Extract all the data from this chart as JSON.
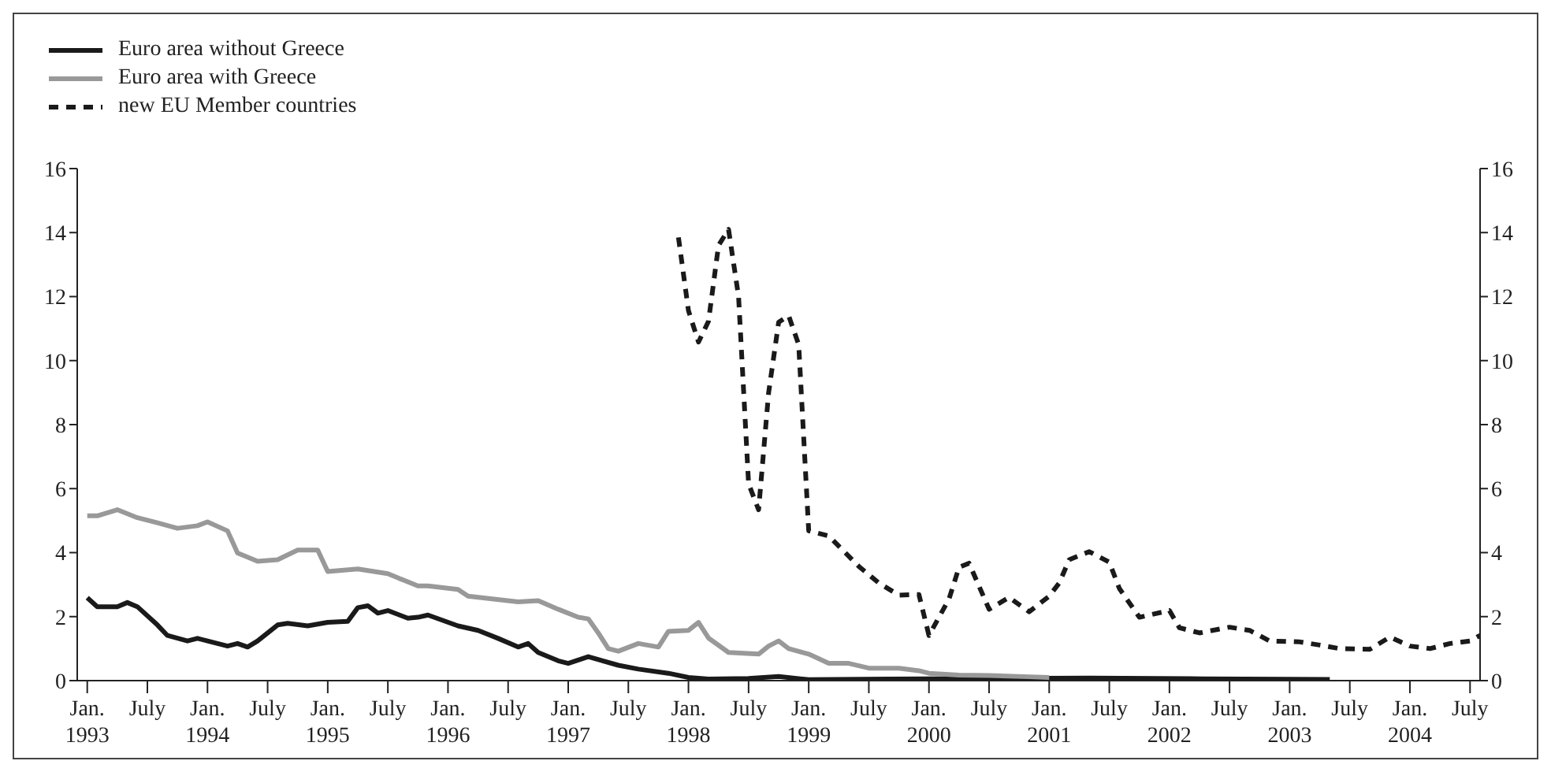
{
  "chart_data": {
    "type": "line",
    "xlim": [
      "1992-12",
      "2004-08"
    ],
    "xticks": [
      {
        "value": "1993-01",
        "label": "Jan. 1993"
      },
      {
        "value": "1993-07",
        "label": "July"
      },
      {
        "value": "1994-01",
        "label": "Jan. 1994"
      },
      {
        "value": "1994-07",
        "label": "July"
      },
      {
        "value": "1995-01",
        "label": "Jan. 1995"
      },
      {
        "value": "1995-07",
        "label": "July"
      },
      {
        "value": "1996-01",
        "label": "Jan. 1996"
      },
      {
        "value": "1996-07",
        "label": "July"
      },
      {
        "value": "1997-01",
        "label": "Jan. 1997"
      },
      {
        "value": "1997-07",
        "label": "July"
      },
      {
        "value": "1998-01",
        "label": "Jan. 1998"
      },
      {
        "value": "1998-07",
        "label": "July"
      },
      {
        "value": "1999-01",
        "label": "Jan. 1999"
      },
      {
        "value": "1999-07",
        "label": "July"
      },
      {
        "value": "2000-01",
        "label": "Jan. 2000"
      },
      {
        "value": "2000-07",
        "label": "July"
      },
      {
        "value": "2001-01",
        "label": "Jan. 2001"
      },
      {
        "value": "2001-07",
        "label": "July"
      },
      {
        "value": "2002-01",
        "label": "Jan. 2002"
      },
      {
        "value": "2002-07",
        "label": "July"
      },
      {
        "value": "2003-01",
        "label": "Jan. 2003"
      },
      {
        "value": "2003-07",
        "label": "July"
      },
      {
        "value": "2004-01",
        "label": "Jan. 2004"
      },
      {
        "value": "2004-07",
        "label": "July"
      }
    ],
    "ylim": [
      0,
      16
    ],
    "yticks": [
      0,
      2,
      4,
      6,
      8,
      10,
      12,
      14,
      16
    ],
    "y2lim": [
      0,
      16
    ],
    "y2ticks": [
      0,
      2,
      4,
      6,
      8,
      10,
      12,
      14,
      16
    ],
    "legend": "top left",
    "grid": false,
    "series": [
      {
        "name": "Euro area without Greece",
        "color": "#1a1a1a",
        "line_style": "solid",
        "x": [
          "1993-01",
          "1993-02",
          "1993-04",
          "1993-05",
          "1993-06",
          "1993-08",
          "1993-09",
          "1993-11",
          "1993-12",
          "1994-01",
          "1994-03",
          "1994-04",
          "1994-05",
          "1994-06",
          "1994-08",
          "1994-09",
          "1994-11",
          "1995-01",
          "1995-03",
          "1995-04",
          "1995-05",
          "1995-06",
          "1995-07",
          "1995-09",
          "1995-10",
          "1995-11",
          "1996-02",
          "1996-04",
          "1996-06",
          "1996-08",
          "1996-09",
          "1996-10",
          "1996-12",
          "1997-01",
          "1997-03",
          "1997-06",
          "1997-08",
          "1997-11",
          "1998-01",
          "1998-03",
          "1998-07",
          "1998-10",
          "1999-01",
          "1999-09",
          "2001-05",
          "2002-03",
          "2003-05"
        ],
        "values": [
          2.59,
          2.31,
          2.31,
          2.44,
          2.31,
          1.74,
          1.41,
          1.24,
          1.32,
          1.24,
          1.08,
          1.16,
          1.05,
          1.24,
          1.74,
          1.79,
          1.71,
          1.82,
          1.85,
          2.28,
          2.34,
          2.11,
          2.19,
          1.95,
          1.98,
          2.05,
          1.71,
          1.57,
          1.32,
          1.05,
          1.16,
          0.88,
          0.62,
          0.54,
          0.75,
          0.48,
          0.36,
          0.23,
          0.1,
          0.05,
          0.07,
          0.13,
          0.03,
          0.05,
          0.08,
          0.06,
          0.04
        ]
      },
      {
        "name": "Euro area with Greece",
        "color": "#999999",
        "line_style": "solid",
        "x": [
          "1993-01",
          "1993-02",
          "1993-04",
          "1993-06",
          "1993-08",
          "1993-10",
          "1993-12",
          "1994-01",
          "1994-03",
          "1994-04",
          "1994-06",
          "1994-08",
          "1994-10",
          "1994-12",
          "1995-01",
          "1995-04",
          "1995-07",
          "1995-08",
          "1995-10",
          "1995-11",
          "1996-02",
          "1996-03",
          "1996-08",
          "1996-10",
          "1996-12",
          "1997-02",
          "1997-03",
          "1997-04",
          "1997-05",
          "1997-06",
          "1997-08",
          "1997-10",
          "1997-11",
          "1998-01",
          "1998-02",
          "1998-03",
          "1998-05",
          "1998-08",
          "1998-09",
          "1998-10",
          "1998-11",
          "1999-01",
          "1999-03",
          "1999-05",
          "1999-07",
          "1999-09",
          "1999-10",
          "1999-12",
          "2000-01",
          "2000-04",
          "2000-07",
          "2000-11",
          "2001-01"
        ],
        "values": [
          5.15,
          5.15,
          5.34,
          5.09,
          4.93,
          4.76,
          4.84,
          4.96,
          4.68,
          3.99,
          3.73,
          3.78,
          4.08,
          4.08,
          3.41,
          3.49,
          3.34,
          3.21,
          2.96,
          2.96,
          2.85,
          2.64,
          2.46,
          2.5,
          2.23,
          1.98,
          1.93,
          1.49,
          1.0,
          0.92,
          1.16,
          1.05,
          1.54,
          1.57,
          1.82,
          1.33,
          0.88,
          0.83,
          1.08,
          1.24,
          1.0,
          0.83,
          0.54,
          0.54,
          0.39,
          0.39,
          0.39,
          0.31,
          0.23,
          0.17,
          0.16,
          0.12,
          0.1
        ]
      },
      {
        "name": "new EU Member countries",
        "color": "#1a1a1a",
        "line_style": "dashed",
        "x": [
          "1997-12",
          "1998-01",
          "1998-02",
          "1998-03",
          "1998-04",
          "1998-05",
          "1998-06",
          "1998-07",
          "1998-08",
          "1998-09",
          "1998-10",
          "1998-11",
          "1998-12",
          "1999-01",
          "1999-03",
          "1999-06",
          "1999-08",
          "1999-10",
          "1999-12",
          "2000-01",
          "2000-03",
          "2000-04",
          "2000-05",
          "2000-07",
          "2000-09",
          "2000-11",
          "2001-01",
          "2001-02",
          "2001-03",
          "2001-05",
          "2001-07",
          "2001-08",
          "2001-10",
          "2002-01",
          "2002-02",
          "2002-04",
          "2002-07",
          "2002-09",
          "2002-11",
          "2003-02",
          "2003-04",
          "2003-06",
          "2003-09",
          "2003-11",
          "2004-01",
          "2004-03",
          "2004-05",
          "2004-07",
          "2004-08"
        ],
        "values": [
          13.85,
          11.56,
          10.58,
          11.23,
          13.6,
          14.1,
          12.0,
          6.15,
          5.34,
          9.0,
          11.2,
          11.4,
          10.5,
          4.68,
          4.52,
          3.57,
          3.05,
          2.67,
          2.69,
          1.41,
          2.55,
          3.54,
          3.67,
          2.23,
          2.6,
          2.15,
          2.64,
          3.05,
          3.78,
          4.03,
          3.7,
          2.88,
          1.98,
          2.19,
          1.65,
          1.49,
          1.67,
          1.57,
          1.24,
          1.21,
          1.11,
          1.0,
          0.98,
          1.36,
          1.08,
          1.0,
          1.16,
          1.24,
          1.41
        ]
      }
    ]
  }
}
